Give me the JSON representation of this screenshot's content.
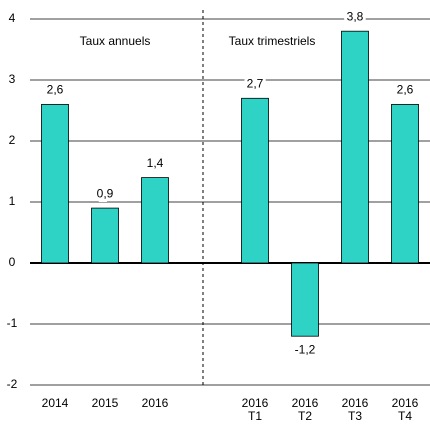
{
  "chart_data": {
    "type": "bar",
    "categories": [
      "2014",
      "2015",
      "2016",
      null,
      "2016\nT1",
      "2016\nT2",
      "2016\nT3",
      "2016\nT4"
    ],
    "values": [
      2.6,
      0.9,
      1.4,
      null,
      2.7,
      -1.2,
      3.8,
      2.6
    ],
    "value_labels": [
      "2,6",
      "0,9",
      "1,4",
      null,
      "2,7",
      "-1,2",
      "3,8",
      "2,6"
    ],
    "color": "#2ed3c6",
    "ylim": [
      -2,
      4
    ],
    "yticks": [
      -2,
      -1,
      0,
      1,
      2,
      3,
      4
    ],
    "grid": true,
    "annotations": [
      "Taux annuels",
      "Taux trimestriels"
    ]
  }
}
